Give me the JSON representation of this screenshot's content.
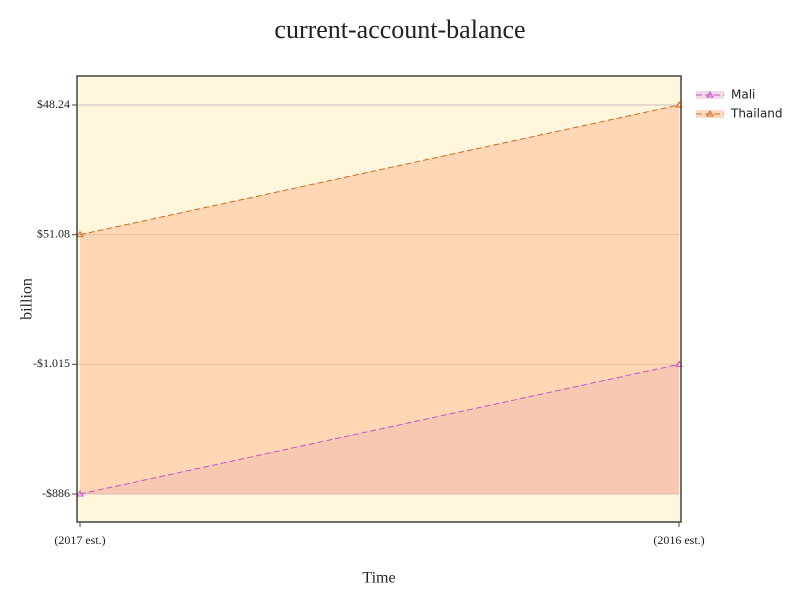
{
  "chart_data": {
    "type": "area",
    "title": "current-account-balance",
    "x_label": "Time",
    "y_label": "billion",
    "categories": [
      "(2017 est.)",
      "(2016 est.)"
    ],
    "yscale": "category",
    "yticks": [
      {
        "value": -0.886,
        "label": "-$886"
      },
      {
        "value": -1.015,
        "label": "-$1.015"
      },
      {
        "value": 51.08,
        "label": "$51.08"
      },
      {
        "value": 48.24,
        "label": "$48.24"
      }
    ],
    "grid": true,
    "legend": "right",
    "series": [
      {
        "name": "Mali",
        "color": "#c653c6",
        "fill": "rgba(214,150,200,0.35)",
        "values": [
          -0.886,
          -1.015
        ]
      },
      {
        "name": "Thailand",
        "color": "#d2691e",
        "fill": "rgba(255,190,150,0.55)",
        "values": [
          51.08,
          48.24
        ]
      }
    ]
  }
}
